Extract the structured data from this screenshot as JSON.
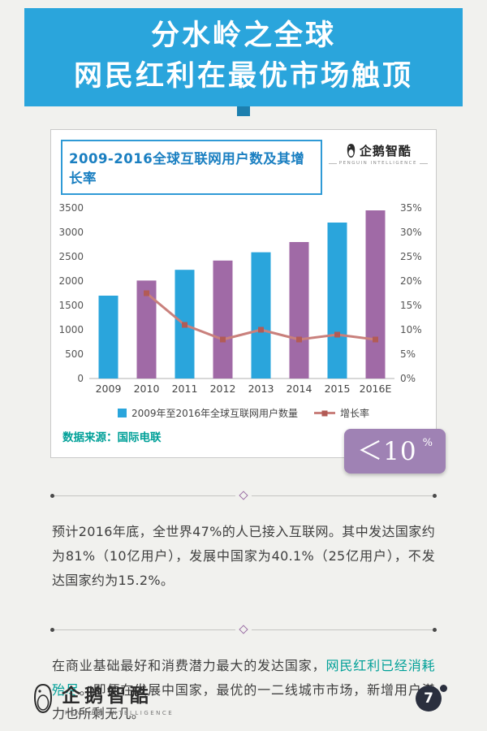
{
  "header": {
    "title_line1": "分水岭之全球",
    "title_line2": "网民红利在最优市场触顶"
  },
  "chart_card": {
    "title": "2009-2016全球互联网用户数及其增长率",
    "logo_text": "企鹅智酷",
    "logo_sub": "PENGUIN INTELLIGENCE",
    "legend_bars": "2009年至2016年全球互联网用户数量",
    "legend_line": "增长率",
    "source": "数据来源：国际电联",
    "badge_value": "＜10",
    "badge_unit": "%"
  },
  "chart_data": {
    "type": "bar",
    "title": "2009-2016全球互联网用户数及其增长率",
    "categories": [
      "2009",
      "2010",
      "2011",
      "2012",
      "2013",
      "2014",
      "2015",
      "2016E"
    ],
    "series": [
      {
        "name": "2009年至2016年全球互联网用户数量",
        "type": "bar",
        "axis": "left",
        "values": [
          1700,
          2010,
          2230,
          2420,
          2590,
          2800,
          3200,
          3450
        ]
      },
      {
        "name": "增长率",
        "type": "line",
        "axis": "right",
        "values": [
          null,
          17.5,
          11,
          8,
          10,
          8,
          9,
          8
        ]
      }
    ],
    "y_left": {
      "min": 0,
      "max": 3500,
      "step": 500
    },
    "y_right": {
      "min": 0,
      "max": 35,
      "step": 5,
      "suffix": "%"
    },
    "grid": false,
    "legend_position": "bottom",
    "colors": {
      "bar_odd": "#2aa5dc",
      "bar_even": "#a06aa6",
      "line": "#c9807c",
      "marker": "#b25b56"
    }
  },
  "paragraph1": "预计2016年底，全世界47%的人已接入互联网。其中发达国家约为81%（10亿用户），发展中国家为40.1%（25亿用户），不发达国家约为15.2%。",
  "paragraph2": {
    "part1": "在商业基础最好和消费潜力最大的发达国家，",
    "highlight": "网民红利已经消耗殆尽",
    "part2": "。即便在发展中国家，最优的一二线城市市场，新增用户潜力也所剩无几。"
  },
  "footer": {
    "logo_text": "企鹅智酷",
    "logo_sub": "PENGUIN INTELLIGENCE",
    "page_number": "7"
  }
}
